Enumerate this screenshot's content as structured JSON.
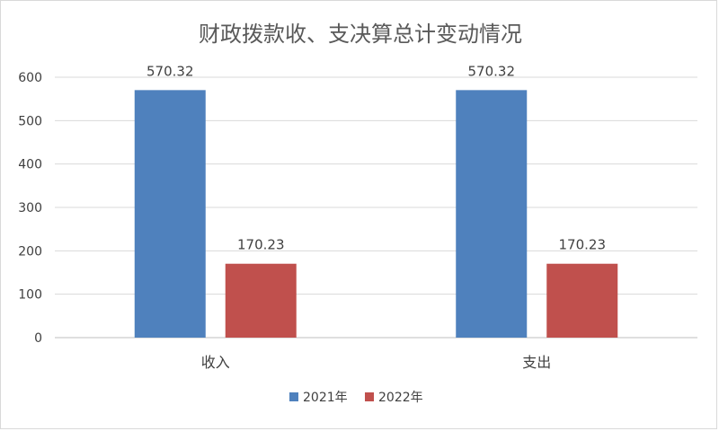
{
  "chart_data": {
    "type": "bar",
    "title": "财政拨款收、支决算总计变动情况",
    "categories": [
      "收入",
      "支出"
    ],
    "series": [
      {
        "name": "2021年",
        "color": "#4f81bd",
        "values": [
          570.32,
          570.32
        ]
      },
      {
        "name": "2022年",
        "color": "#c0504d",
        "values": [
          170.23,
          170.23
        ]
      }
    ],
    "value_labels": [
      [
        "570.32",
        "570.32"
      ],
      [
        "170.23",
        "170.23"
      ]
    ],
    "yticks": [
      "0",
      "100",
      "200",
      "300",
      "400",
      "500",
      "600"
    ],
    "ylim": [
      0,
      600
    ],
    "grid": true,
    "legend": "bottom"
  }
}
